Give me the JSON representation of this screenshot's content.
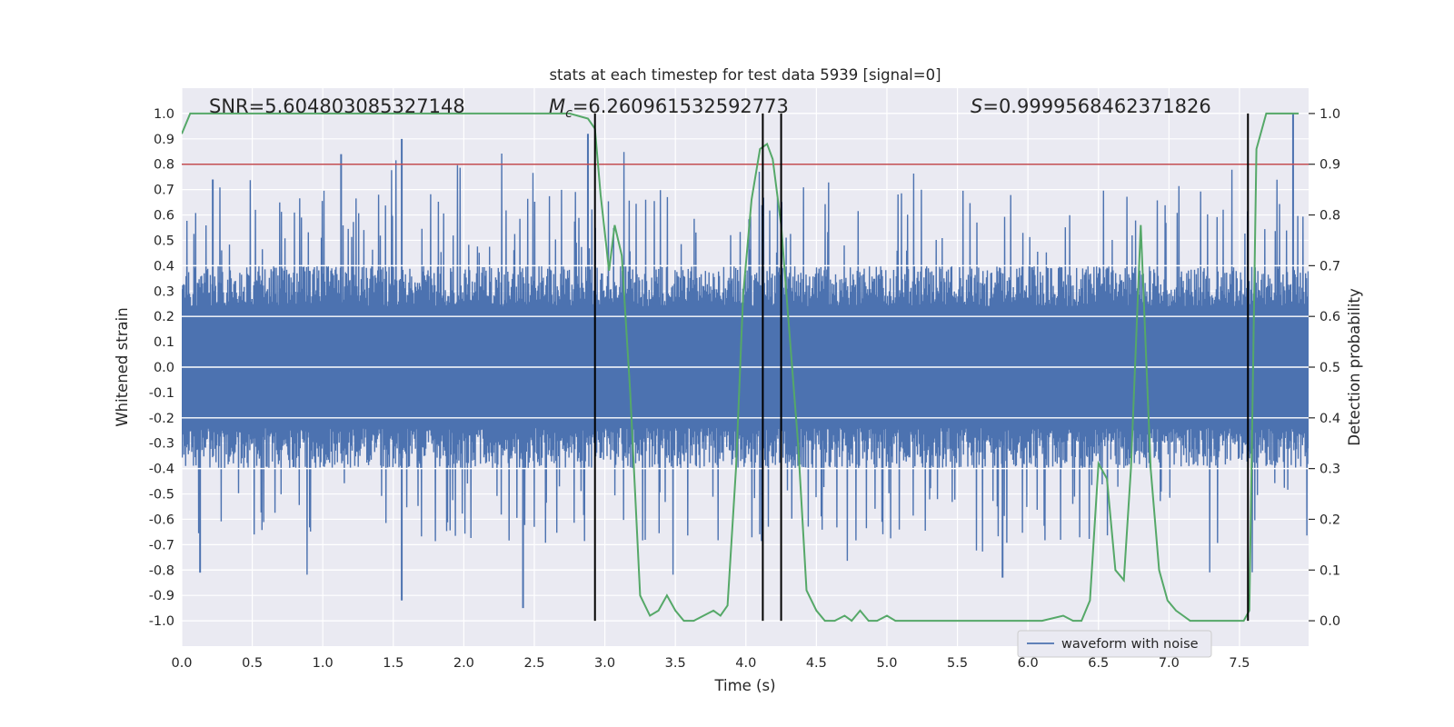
{
  "chart_data": {
    "type": "line",
    "title": "stats at each timestep for test data 5939 [signal=0]",
    "xlabel": "Time (s)",
    "ylabel": "Whitened strain",
    "y2label": "Detection probability",
    "xlim": [
      0.0,
      7.99
    ],
    "ylim": [
      -1.1,
      1.1
    ],
    "y2lim": [
      -0.05,
      1.05
    ],
    "grid": true,
    "x_ticks": [
      "0.0",
      "0.5",
      "1.0",
      "1.5",
      "2.0",
      "2.5",
      "3.0",
      "3.5",
      "4.0",
      "4.5",
      "5.0",
      "5.5",
      "6.0",
      "6.5",
      "7.0",
      "7.5"
    ],
    "y_ticks": [
      "1.0",
      "0.9",
      "0.8",
      "0.7",
      "0.6",
      "0.5",
      "0.4",
      "0.3",
      "0.2",
      "0.1",
      "0.0",
      "-0.1",
      "-0.2",
      "-0.3",
      "-0.4",
      "-0.5",
      "-0.6",
      "-0.7",
      "-0.8",
      "-0.9",
      "-1.0"
    ],
    "y2_ticks": [
      "1.0",
      "0.9",
      "0.8",
      "0.7",
      "0.6",
      "0.5",
      "0.4",
      "0.3",
      "0.2",
      "0.1",
      "0.0"
    ],
    "annotations": {
      "snr_label": "SNR=5.604803085327148",
      "mc_symbol": "M",
      "mc_subscript": "c",
      "mc_value": "=6.260961532592773",
      "s_symbol": "S",
      "s_value": "=0.9999568462371826"
    },
    "threshold": {
      "value": 0.9,
      "axis": "right",
      "color": "#c44e52"
    },
    "detection_markers": [
      2.93,
      4.12,
      4.25,
      7.56
    ],
    "legend": {
      "label": "waveform with noise",
      "placement": "lower right"
    },
    "series": [
      {
        "name": "waveform with noise",
        "axis": "left",
        "color": "#4c72b0",
        "style": "dense noise, approx. band ±0.4 with spikes up to ±1.0",
        "extremes": [
          {
            "x": 0.22,
            "y": 0.74
          },
          {
            "x": 1.13,
            "y": 0.84
          },
          {
            "x": 1.56,
            "y": 0.9
          },
          {
            "x": 2.88,
            "y": 0.92
          },
          {
            "x": 7.88,
            "y": 1.0
          },
          {
            "x": 0.13,
            "y": -0.81
          },
          {
            "x": 1.56,
            "y": -0.92
          },
          {
            "x": 2.42,
            "y": -0.95
          },
          {
            "x": 5.82,
            "y": -0.83
          }
        ]
      },
      {
        "name": "Detection probability",
        "axis": "right",
        "color": "#55a868",
        "x": [
          0.0,
          0.06,
          0.5,
          1.0,
          1.5,
          2.0,
          2.5,
          2.75,
          2.88,
          2.93,
          2.97,
          3.03,
          3.07,
          3.12,
          3.18,
          3.25,
          3.32,
          3.38,
          3.44,
          3.5,
          3.56,
          3.63,
          3.7,
          3.77,
          3.82,
          3.87,
          3.93,
          3.98,
          4.04,
          4.1,
          4.15,
          4.19,
          4.25,
          4.3,
          4.37,
          4.43,
          4.5,
          4.56,
          4.63,
          4.7,
          4.75,
          4.81,
          4.87,
          4.93,
          5.0,
          5.06,
          5.13,
          5.3,
          5.6,
          5.9,
          6.1,
          6.25,
          6.32,
          6.38,
          6.44,
          6.5,
          6.56,
          6.62,
          6.68,
          6.73,
          6.8,
          6.87,
          6.93,
          6.99,
          7.05,
          7.1,
          7.15,
          7.2,
          7.3,
          7.45,
          7.53,
          7.57,
          7.62,
          7.69,
          7.75,
          7.82,
          7.92
        ],
        "values": [
          0.96,
          1.0,
          1.0,
          1.0,
          1.0,
          1.0,
          1.0,
          1.0,
          0.99,
          0.97,
          0.84,
          0.69,
          0.78,
          0.72,
          0.45,
          0.05,
          0.01,
          0.02,
          0.05,
          0.02,
          0.0,
          0.0,
          0.01,
          0.02,
          0.01,
          0.03,
          0.3,
          0.64,
          0.83,
          0.93,
          0.94,
          0.91,
          0.78,
          0.6,
          0.35,
          0.06,
          0.02,
          0.0,
          0.0,
          0.01,
          0.0,
          0.02,
          0.0,
          0.0,
          0.01,
          0.0,
          0.0,
          0.0,
          0.0,
          0.0,
          0.0,
          0.01,
          0.0,
          0.0,
          0.04,
          0.31,
          0.28,
          0.1,
          0.08,
          0.3,
          0.78,
          0.3,
          0.1,
          0.04,
          0.02,
          0.01,
          0.0,
          0.0,
          0.0,
          0.0,
          0.0,
          0.02,
          0.93,
          1.0,
          1.0,
          1.0,
          1.0
        ]
      }
    ]
  }
}
